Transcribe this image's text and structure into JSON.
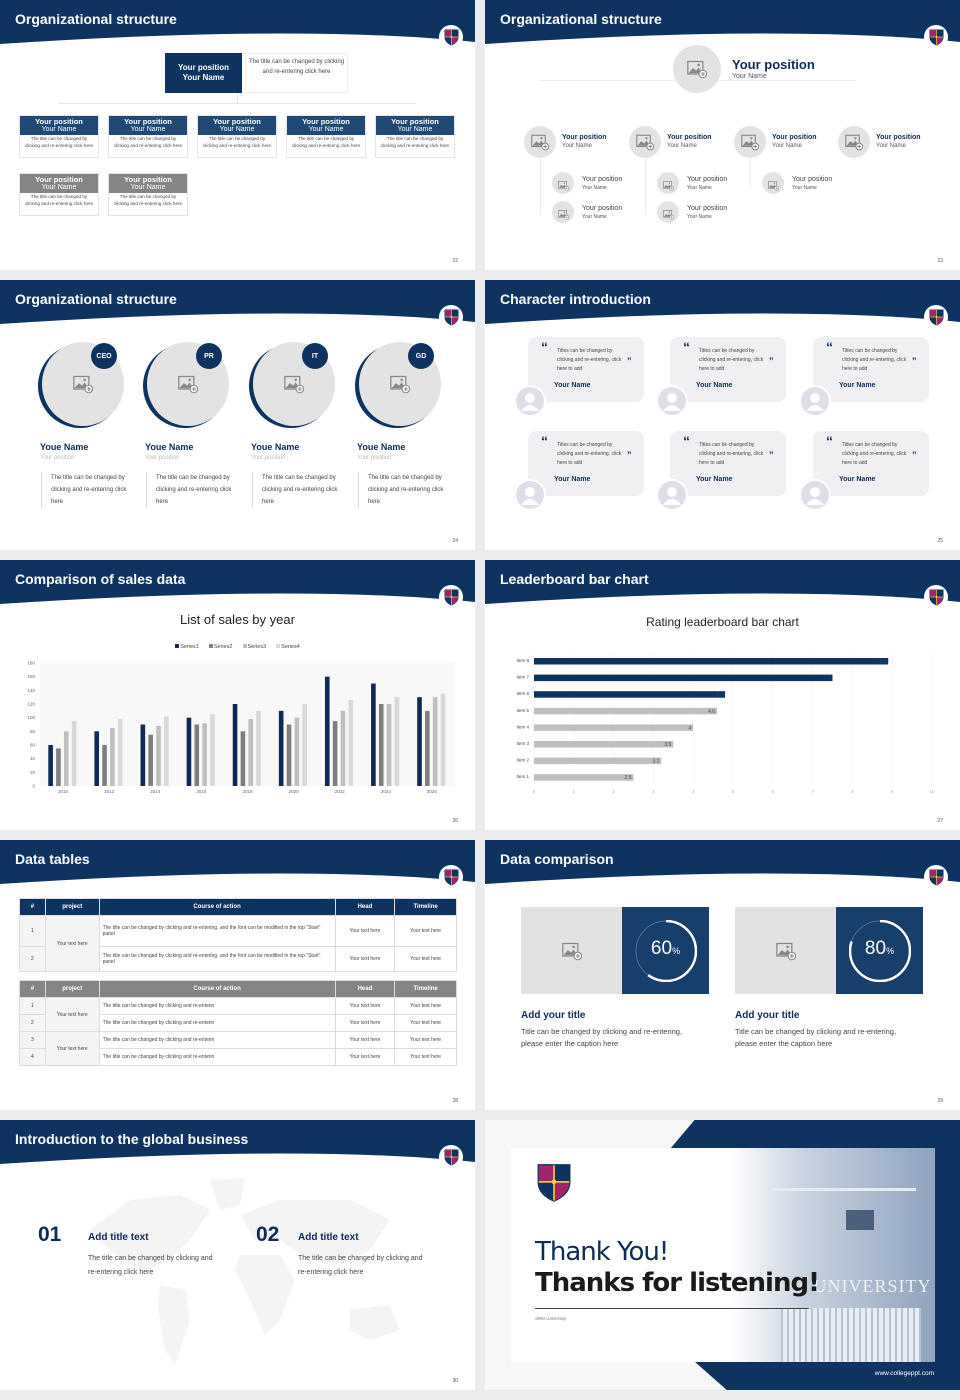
{
  "colors": {
    "navy": "#0d3461",
    "grey": "#808080",
    "light": "#e3e3e3"
  },
  "icons": {
    "logo": "university-shield-logo",
    "placeholder": "image-placeholder-icon",
    "avatar": "user-avatar-icon",
    "quote": "quote-icon"
  },
  "slides": [
    {
      "title": "Organizational structure",
      "page": "22",
      "top": {
        "position": "Your position",
        "name": "Your Name",
        "text": "The title can be changed by clicking and re-entering click here"
      },
      "boxes": [
        {
          "position": "Your position",
          "name": "Your Name",
          "text": "The title can be changed by clicking and re-entering click here",
          "style": "navy"
        },
        {
          "position": "Your position",
          "name": "Your Name",
          "text": "The title can be changed by clicking and re-entering click here",
          "style": "navy"
        },
        {
          "position": "Your position",
          "name": "Your Name",
          "text": "The title can be changed by clicking and re-entering click here",
          "style": "navy"
        },
        {
          "position": "Your position",
          "name": "Your Name",
          "text": "The title can be changed by clicking and re-entering click here",
          "style": "navy"
        },
        {
          "position": "Your position",
          "name": "Your Name",
          "text": "The title can be changed by clicking and re-entering click here",
          "style": "navy"
        },
        {
          "position": "Your position",
          "name": "Your Name",
          "text": "The title can be changed by clicking and re-entering click here",
          "style": "grey"
        },
        {
          "position": "Your position",
          "name": "Your Name",
          "text": "The title can be changed by clicking and re-entering click here",
          "style": "grey"
        }
      ]
    },
    {
      "title": "Organizational structure",
      "page": "23",
      "top": {
        "position": "Your position",
        "name": "Your Name"
      },
      "groups": [
        {
          "position": "Your position",
          "name": "Your Name",
          "children": [
            {
              "position": "Your position",
              "name": "Your Name"
            },
            {
              "position": "Your position",
              "name": "Your Name"
            }
          ]
        },
        {
          "position": "Your position",
          "name": "Your Name",
          "children": [
            {
              "position": "Your position",
              "name": "Your Name"
            },
            {
              "position": "Your position",
              "name": "Your Name"
            }
          ]
        },
        {
          "position": "Your position",
          "name": "Your Name",
          "children": [
            {
              "position": "Your position",
              "name": "Your Name"
            }
          ]
        },
        {
          "position": "Your position",
          "name": "Your Name",
          "children": []
        }
      ]
    },
    {
      "title": "Organizational structure",
      "page": "24",
      "members": [
        {
          "badge": "CEO",
          "name": "Youe Name",
          "position": "Your position",
          "text": "The title can be changed by clicking and re-entering click here"
        },
        {
          "badge": "PR",
          "name": "Youe Name",
          "position": "Your position",
          "text": "The title can be changed by clicking and re-entering click here"
        },
        {
          "badge": "IT",
          "name": "Youe Name",
          "position": "Your position",
          "text": "The title can be changed by clicking and re-entering click here"
        },
        {
          "badge": "GD",
          "name": "Youe Name",
          "position": "Your position",
          "text": "The title can be changed by clicking and re-entering click here"
        }
      ]
    },
    {
      "title": "Character introduction",
      "page": "25",
      "cards": [
        {
          "quote": "Titles can be changed by clicking and re-entering, click here to add",
          "name": "Your Name"
        },
        {
          "quote": "Titles can be changed by clicking and re-entering, click here to add",
          "name": "Your Name"
        },
        {
          "quote": "Titles can be changed by clicking and re-entering, click here to add",
          "name": "Your Name"
        },
        {
          "quote": "Titles can be changed by clicking and re-entering, click here to add",
          "name": "Your Name"
        },
        {
          "quote": "Titles can be changed by clicking and re-entering, click here to add",
          "name": "Your Name"
        },
        {
          "quote": "Titles can be changed by clicking and re-entering, click here to add",
          "name": "Your Name"
        }
      ]
    },
    {
      "title": "Comparison of sales data",
      "page": "26"
    },
    {
      "title": "Leaderboard bar chart",
      "page": "27"
    },
    {
      "title": "Data tables",
      "page": "28",
      "headers": [
        "#",
        "project",
        "Course of action",
        "Head",
        "Timeline"
      ],
      "table1": {
        "project": "Your text here",
        "rows": [
          {
            "n": "1",
            "action": "The title can be changed by clicking and re-entering, and the font can be modified in the top \"Start\" panel",
            "head": "Your text here",
            "timeline": "Your text here"
          },
          {
            "n": "2",
            "action": "The title can be changed by clicking and re-entering, and the font can be modified in the top \"Start\" panel",
            "head": "Your text here",
            "timeline": "Your text here"
          }
        ]
      },
      "table2": {
        "projects": [
          "Your text here",
          "Your text here"
        ],
        "rows": [
          {
            "n": "1",
            "action": "The title can be changed by clicking and re-enterin",
            "head": "Your text here",
            "timeline": "Your text here"
          },
          {
            "n": "2",
            "action": "The title can be changed by clicking and re-enterin",
            "head": "Your text here",
            "timeline": "Your text here"
          },
          {
            "n": "3",
            "action": "The title can be changed by clicking and re-enterin",
            "head": "Your text here",
            "timeline": "Your text here"
          },
          {
            "n": "4",
            "action": "The title can be changed by clicking and re-enterin",
            "head": "Your text here",
            "timeline": "Your text here"
          }
        ]
      }
    },
    {
      "title": "Data comparison",
      "page": "29",
      "items": [
        {
          "value": 60,
          "value_label": "60",
          "unit": "%",
          "title": "Add your title",
          "text": "Title can be changed by clicking and re-entering, please enter the caption here"
        },
        {
          "value": 80,
          "value_label": "80",
          "unit": "%",
          "title": "Add your title",
          "text": "Title can be changed by clicking and re-entering, please enter the caption here"
        }
      ]
    },
    {
      "title": "Introduction to the global business",
      "page": "30",
      "items": [
        {
          "num": "01",
          "title": "Add title text",
          "text": "The title can be changed by clicking and re-entering click here"
        },
        {
          "num": "02",
          "title": "Add title text",
          "text": "The title can be changed by clicking and re-entering click here"
        }
      ]
    },
    {
      "line1": "Thank You!",
      "line2": "Thanks for listening!",
      "subtitle": "SRM University",
      "photo_sign": "M UNIVERSITY",
      "url": "www.collegeppt.com"
    }
  ],
  "chart_data": [
    {
      "type": "bar",
      "title": "List of sales by year",
      "categories": [
        "2010",
        "2012",
        "2014",
        "2016",
        "2018",
        "2020",
        "2022",
        "2024",
        "2026"
      ],
      "series": [
        {
          "name": "Series1",
          "color": "#0d2b55",
          "values": [
            60,
            80,
            90,
            100,
            120,
            110,
            160,
            150,
            130
          ]
        },
        {
          "name": "Series2",
          "color": "#7f7f7f",
          "values": [
            55,
            60,
            75,
            90,
            80,
            90,
            95,
            120,
            110
          ]
        },
        {
          "name": "Series3",
          "color": "#bfbfbf",
          "values": [
            80,
            85,
            88,
            92,
            98,
            100,
            110,
            120,
            130
          ]
        },
        {
          "name": "Series4",
          "color": "#d9d9d9",
          "values": [
            95,
            98,
            102,
            105,
            110,
            120,
            126,
            130,
            135
          ]
        }
      ],
      "ylim": [
        0,
        180
      ],
      "yticks": [
        0,
        20,
        40,
        60,
        80,
        100,
        120,
        140,
        160,
        180
      ],
      "legend": "top",
      "grid": false
    },
    {
      "type": "bar",
      "orientation": "horizontal",
      "title": "Rating leaderboard bar chart",
      "categories": [
        "Item 8",
        "Item 7",
        "Item 6",
        "Item 5",
        "Item 4",
        "Item 3",
        "Item 2",
        "Item 1"
      ],
      "values": [
        8.9,
        7.5,
        4.8,
        4.6,
        4,
        3.5,
        3.2,
        2.5
      ],
      "labels": [
        "8.9",
        "7.5",
        "4.8",
        "4.6",
        "4",
        "3.5",
        "3.2",
        "2.5"
      ],
      "colors": [
        "#0d3461",
        "#0d3461",
        "#0d3461",
        "#bfbfbf",
        "#bfbfbf",
        "#bfbfbf",
        "#bfbfbf",
        "#bfbfbf"
      ],
      "xlim": [
        0,
        10
      ],
      "xticks": [
        0,
        1,
        2,
        3,
        4,
        5,
        6,
        7,
        8,
        9,
        10
      ],
      "grid": true
    }
  ]
}
